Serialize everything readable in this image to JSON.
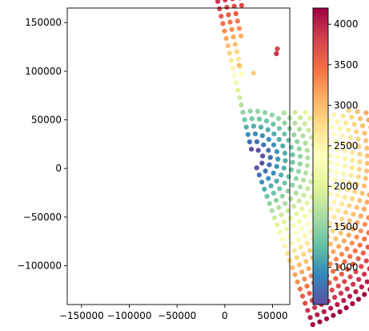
{
  "chart_data": {
    "type": "scatter",
    "title": "",
    "xlabel": "",
    "ylabel": "",
    "xlim": [
      -165000,
      68000
    ],
    "ylim": [
      -140000,
      165000
    ],
    "xticks": [
      -150000,
      -100000,
      -50000,
      0,
      50000
    ],
    "yticks": [
      -100000,
      -50000,
      0,
      50000,
      100000,
      150000
    ],
    "grid": false,
    "marker": "filled-circle",
    "colormap": "Spectral_r",
    "colorbar": {
      "range": [
        540,
        4200
      ],
      "ticks": [
        1000,
        1500,
        2000,
        2500,
        3000,
        3500,
        4000
      ],
      "placement": "right"
    },
    "series": [
      {
        "shape": "wedge of concentric arcs",
        "center": [
          30000,
          10000
        ],
        "radius_range": [
          10000,
          182000
        ],
        "angle_range_deg": [
          -70,
          103
        ],
        "value_range": [
          540,
          4200
        ],
        "values_increase_with": "distance from center",
        "gaps_near": [
          [
            -95000,
            -30000
          ],
          [
            -95000,
            -50000
          ]
        ]
      },
      {
        "shape": "outlier points",
        "points": [
          {
            "x": 54000,
            "y": 118000,
            "value": 3900
          },
          {
            "x": 55000,
            "y": 123000,
            "value": 3800
          },
          {
            "x": 30000,
            "y": 98000,
            "value": 2900
          },
          {
            "x": 15000,
            "y": 106000,
            "value": 3000
          }
        ]
      }
    ]
  }
}
